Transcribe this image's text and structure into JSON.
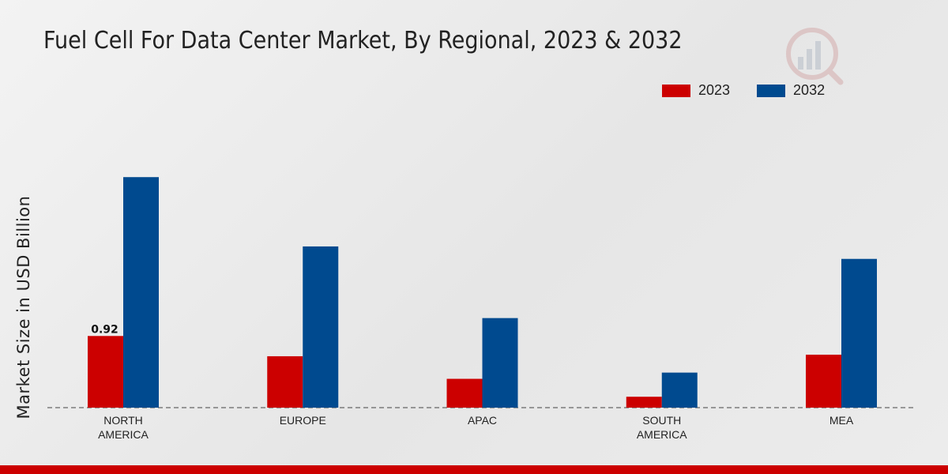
{
  "chart_data": {
    "type": "bar",
    "title": "Fuel Cell For Data Center Market, By Regional, 2023 & 2032",
    "xlabel": "",
    "ylabel": "Market Size in USD Billion",
    "categories": [
      [
        "NORTH",
        "AMERICA"
      ],
      [
        "EUROPE"
      ],
      [
        "APAC"
      ],
      [
        "SOUTH",
        "AMERICA"
      ],
      [
        "MEA"
      ]
    ],
    "series": [
      {
        "name": "2023",
        "color": "#cc0000",
        "values": [
          0.92,
          0.66,
          0.37,
          0.14,
          0.68
        ]
      },
      {
        "name": "2032",
        "color": "#004a8f",
        "values": [
          2.96,
          2.07,
          1.15,
          0.45,
          1.91
        ]
      }
    ],
    "data_labels": [
      {
        "series": 0,
        "index": 0,
        "text": "0.92"
      }
    ],
    "ylim": [
      0,
      4.22
    ],
    "grid": false,
    "legend_position": "top-right"
  },
  "footer_color": "#cc0000"
}
